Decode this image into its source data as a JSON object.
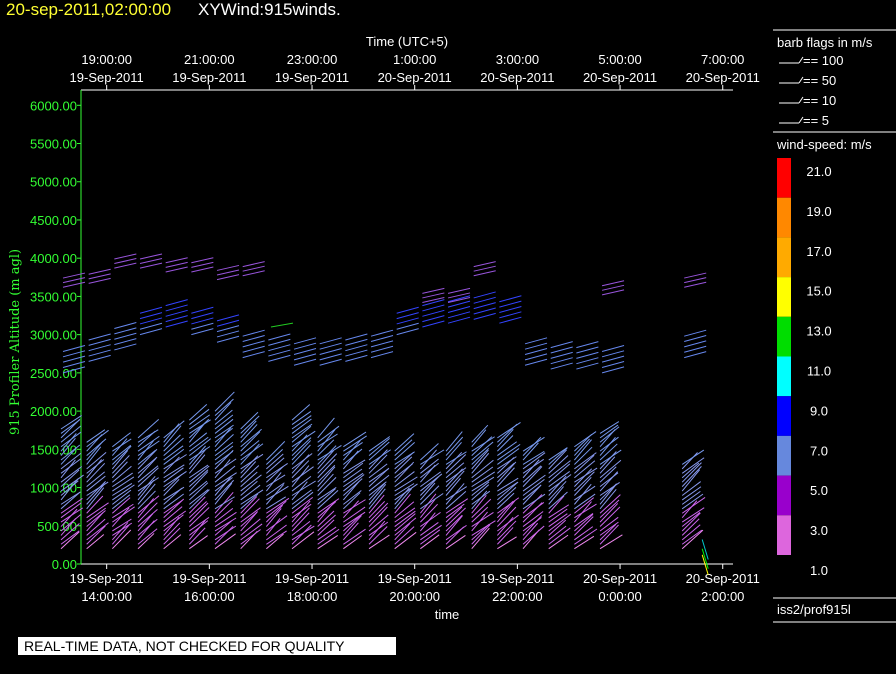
{
  "header": {
    "date": "20-sep-2011,02:00:00",
    "product": "XYWind:915winds."
  },
  "legend": {
    "barb_title": "barb flags in m/s",
    "barb_items": [
      "== 100",
      "== 50",
      "== 10",
      "== 5"
    ],
    "speed_title": "wind-speed: m/s",
    "speed_colors": [
      "#ff0000",
      "#ff8800",
      "#ffaa00",
      "#ffff00",
      "#00dd00",
      "#00ffff",
      "#0000ff",
      "#6688dd",
      "#9900cc",
      "#dd66dd"
    ],
    "speed_labels": [
      "21.0",
      "19.0",
      "17.0",
      "15.0",
      "13.0",
      "11.0",
      "9.0",
      "7.0",
      "5.0",
      "3.0",
      "1.0"
    ],
    "source": "iss2/prof915l"
  },
  "footer": {
    "quality_note": "REAL-TIME DATA, NOT CHECKED FOR QUALITY"
  },
  "chart_data": {
    "type": "scatter",
    "title": "",
    "top_axis_title": "Time (UTC+5)",
    "xlabel": "time",
    "ylabel": "915 Profiler Altitude (m agl)",
    "ylim": [
      0,
      6200
    ],
    "y_ticks": [
      "0.00",
      "500.00",
      "1000.00",
      "1500.00",
      "2000.00",
      "2500.00",
      "3000.00",
      "3500.00",
      "4000.00",
      "4500.00",
      "5000.00",
      "5500.00",
      "6000.00"
    ],
    "x_ticks_bottom": [
      {
        "date": "19-Sep-2011",
        "time": "14:00:00"
      },
      {
        "date": "19-Sep-2011",
        "time": "16:00:00"
      },
      {
        "date": "19-Sep-2011",
        "time": "18:00:00"
      },
      {
        "date": "19-Sep-2011",
        "time": "20:00:00"
      },
      {
        "date": "19-Sep-2011",
        "time": "22:00:00"
      },
      {
        "date": "20-Sep-2011",
        "time": "0:00:00"
      },
      {
        "date": "20-Sep-2011",
        "time": "2:00:00"
      }
    ],
    "x_ticks_top": [
      {
        "time": "19:00:00",
        "date": "19-Sep-2011"
      },
      {
        "time": "21:00:00",
        "date": "19-Sep-2011"
      },
      {
        "time": "23:00:00",
        "date": "19-Sep-2011"
      },
      {
        "time": "1:00:00",
        "date": "20-Sep-2011"
      },
      {
        "time": "3:00:00",
        "date": "20-Sep-2011"
      },
      {
        "time": "5:00:00",
        "date": "20-Sep-2011"
      },
      {
        "time": "7:00:00",
        "date": "20-Sep-2011"
      }
    ],
    "xlim_hours": [
      13.5,
      26.2
    ],
    "profile_hours": [
      13.5,
      14.0,
      14.5,
      15.0,
      15.5,
      16.0,
      16.5,
      17.0,
      17.5,
      18.0,
      18.5,
      19.0,
      19.5,
      20.0,
      20.5,
      21.0,
      21.5,
      22.0,
      22.5,
      23.0,
      23.5,
      24.0,
      25.6
    ],
    "profile_top_m": [
      1800,
      1600,
      1550,
      1650,
      1700,
      1900,
      2000,
      1800,
      1400,
      1900,
      1700,
      1550,
      1500,
      1500,
      1400,
      1500,
      1600,
      1650,
      1500,
      1400,
      1550,
      1750,
      1350
    ],
    "upper_layer_m": [
      2700,
      2850,
      3000,
      3200,
      3300,
      3200,
      3100,
      2900,
      2850,
      2800,
      2800,
      2850,
      2900,
      3200,
      3300,
      3350,
      3400,
      3350,
      2800,
      2750,
      2750,
      2700,
      2900
    ],
    "top_layer_m": [
      3700,
      3750,
      3950,
      3950,
      3900,
      3900,
      3800,
      3850,
      0,
      0,
      0,
      0,
      0,
      0,
      3500,
      3500,
      3850,
      0,
      0,
      0,
      0,
      3600,
      3700
    ]
  }
}
